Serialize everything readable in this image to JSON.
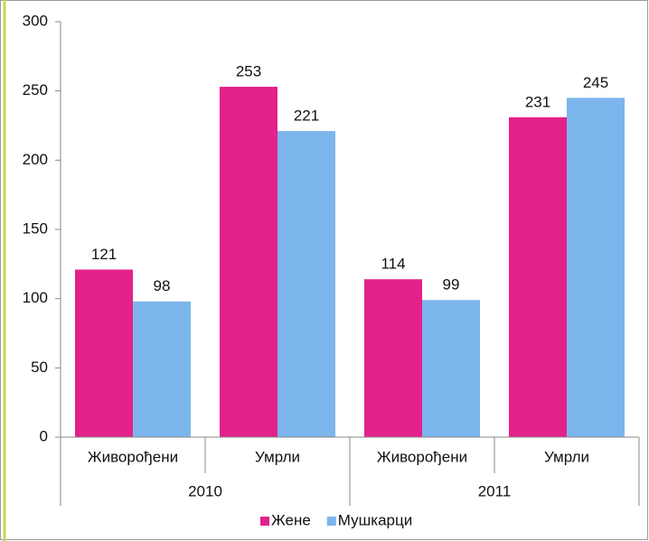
{
  "chart_data": {
    "type": "bar",
    "categories": [
      "Живорођени",
      "Умрли",
      "Живорођени",
      "Умрли"
    ],
    "group_labels": [
      "2010",
      "2011"
    ],
    "series": [
      {
        "name": "Жене",
        "color": "#e3218b",
        "values": [
          121,
          253,
          114,
          231
        ]
      },
      {
        "name": "Мушкарци",
        "color": "#7cb5ec",
        "values": [
          98,
          221,
          99,
          245
        ]
      }
    ],
    "ylim": [
      0,
      300
    ],
    "yticks": [
      0,
      50,
      100,
      150,
      200,
      250,
      300
    ],
    "grid": false,
    "legend": "bottom"
  }
}
